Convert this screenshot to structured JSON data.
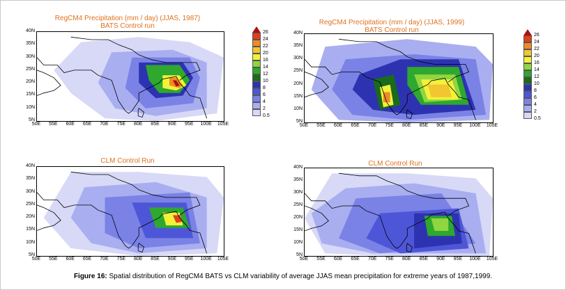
{
  "figure": {
    "caption_label": "Figure 16:",
    "caption_text": " Spatial distribution of RegCM4 BATS vs CLM variability of average JJAS mean precipitation for extreme years of 1987,1999."
  },
  "panels": [
    {
      "title1": "RegCM4 Precipitation (mm / day)  (JJAS, 1987)",
      "title2": "BATS Control run"
    },
    {
      "title1": "RegCM4 Precipitation (mm / day)  (JJAS, 1999)",
      "title2": "BATS Control run"
    },
    {
      "title1": "CLM Control Run",
      "title2": ""
    },
    {
      "title1": "CLM Control Run",
      "title2": ""
    }
  ],
  "axes": {
    "y_ticks": [
      "40N",
      "35N",
      "30N",
      "25N",
      "20N",
      "15N",
      "10N",
      "5N"
    ],
    "x_ticks": [
      "50E",
      "55E",
      "60E",
      "65E",
      "70E",
      "75E",
      "80E",
      "85E",
      "90E",
      "95E",
      "100E",
      "105E"
    ]
  },
  "colorbar": {
    "levels": [
      "0.5",
      "2",
      "4",
      "6",
      "8",
      "10",
      "12",
      "14",
      "16",
      "20",
      "22",
      "24",
      "26"
    ],
    "colors": [
      "#d7d9f7",
      "#a9aef0",
      "#7a82e6",
      "#4e56d8",
      "#2d33b0",
      "#1a6b1a",
      "#2ea82e",
      "#8fd641",
      "#f2f23a",
      "#f2c531",
      "#f08a28",
      "#e0401e",
      "#b01010"
    ]
  },
  "chart_data": [
    {
      "type": "heatmap",
      "title": "RegCM4 Precipitation (mm / day)  (JJAS, 1987)",
      "subtitle": "BATS Control run",
      "x_range": [
        "50E",
        "105E"
      ],
      "y_range": [
        "5N",
        "40N"
      ],
      "colorbar_levels": [
        0.5,
        2,
        4,
        6,
        8,
        10,
        12,
        14,
        16,
        20,
        22,
        24,
        26
      ],
      "cells": [
        {
          "lon": 60,
          "lat": 34,
          "level": 0.5
        },
        {
          "lon": 72,
          "lat": 31,
          "level": 2
        },
        {
          "lon": 80,
          "lat": 27,
          "level": 4
        },
        {
          "lon": 86,
          "lat": 25,
          "level": 12
        },
        {
          "lon": 90,
          "lat": 20,
          "level": 16
        },
        {
          "lon": 92,
          "lat": 20,
          "level": 26
        },
        {
          "lon": 78,
          "lat": 17,
          "level": 6
        },
        {
          "lon": 70,
          "lat": 14,
          "level": 2
        }
      ]
    },
    {
      "type": "heatmap",
      "title": "RegCM4 Precipitation (mm / day)  (JJAS, 1999)",
      "subtitle": "BATS Control run",
      "x_range": [
        "50E",
        "105E"
      ],
      "y_range": [
        "5N",
        "40N"
      ],
      "colorbar_levels": [
        0.5,
        2,
        4,
        6,
        8,
        10,
        12,
        14,
        16,
        20,
        22,
        24,
        26
      ],
      "cells": [
        {
          "lon": 62,
          "lat": 33,
          "level": 2
        },
        {
          "lon": 80,
          "lat": 29,
          "level": 8
        },
        {
          "lon": 74,
          "lat": 15,
          "level": 20
        },
        {
          "lon": 88,
          "lat": 17,
          "level": 20
        },
        {
          "lon": 95,
          "lat": 14,
          "level": 10
        },
        {
          "lon": 66,
          "lat": 18,
          "level": 6
        }
      ]
    },
    {
      "type": "heatmap",
      "title": "CLM Control Run",
      "x_range": [
        "50E",
        "105E"
      ],
      "y_range": [
        "5N",
        "40N"
      ],
      "colorbar_levels": [
        0.5,
        2,
        4,
        6,
        8,
        10,
        12,
        14,
        16,
        20,
        22,
        24,
        26
      ],
      "cells": [
        {
          "lon": 65,
          "lat": 30,
          "level": 2
        },
        {
          "lon": 80,
          "lat": 27,
          "level": 4
        },
        {
          "lon": 90,
          "lat": 20,
          "level": 14
        },
        {
          "lon": 92,
          "lat": 20,
          "level": 26
        },
        {
          "lon": 75,
          "lat": 12,
          "level": 6
        }
      ]
    },
    {
      "type": "heatmap",
      "title": "CLM Control Run",
      "x_range": [
        "50E",
        "105E"
      ],
      "y_range": [
        "5N",
        "40N"
      ],
      "colorbar_levels": [
        0.5,
        2,
        4,
        6,
        8,
        10,
        12,
        14,
        16,
        20,
        22,
        24,
        26
      ],
      "cells": [
        {
          "lon": 62,
          "lat": 33,
          "level": 0.5
        },
        {
          "lon": 75,
          "lat": 25,
          "level": 2
        },
        {
          "lon": 90,
          "lat": 18,
          "level": 14
        },
        {
          "lon": 85,
          "lat": 10,
          "level": 6
        },
        {
          "lon": 70,
          "lat": 14,
          "level": 4
        }
      ]
    }
  ]
}
